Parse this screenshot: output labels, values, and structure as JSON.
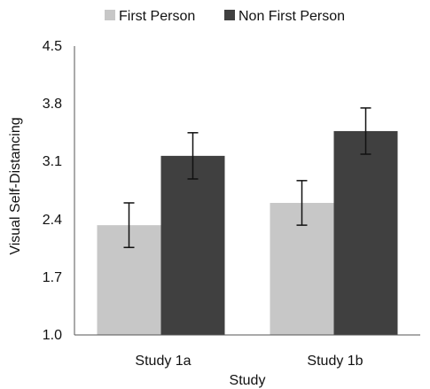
{
  "chart_data": {
    "type": "bar",
    "title": "",
    "xlabel": "Study",
    "ylabel": "Visual Self-Distancing",
    "categories": [
      "Study 1a",
      "Study 1b"
    ],
    "ylim": [
      1.0,
      4.5
    ],
    "yticks": [
      "1.0",
      "1.7",
      "2.4",
      "3.1",
      "3.8",
      "4.5"
    ],
    "grid": false,
    "legend_position": "top",
    "error_bars": true,
    "series": [
      {
        "name": "First Person",
        "color": "#c7c7c7",
        "values": [
          2.33,
          2.6
        ],
        "error": [
          0.27,
          0.27
        ]
      },
      {
        "name": "Non First Person",
        "color": "#404040",
        "values": [
          3.17,
          3.47
        ],
        "error": [
          0.28,
          0.28
        ]
      }
    ]
  }
}
